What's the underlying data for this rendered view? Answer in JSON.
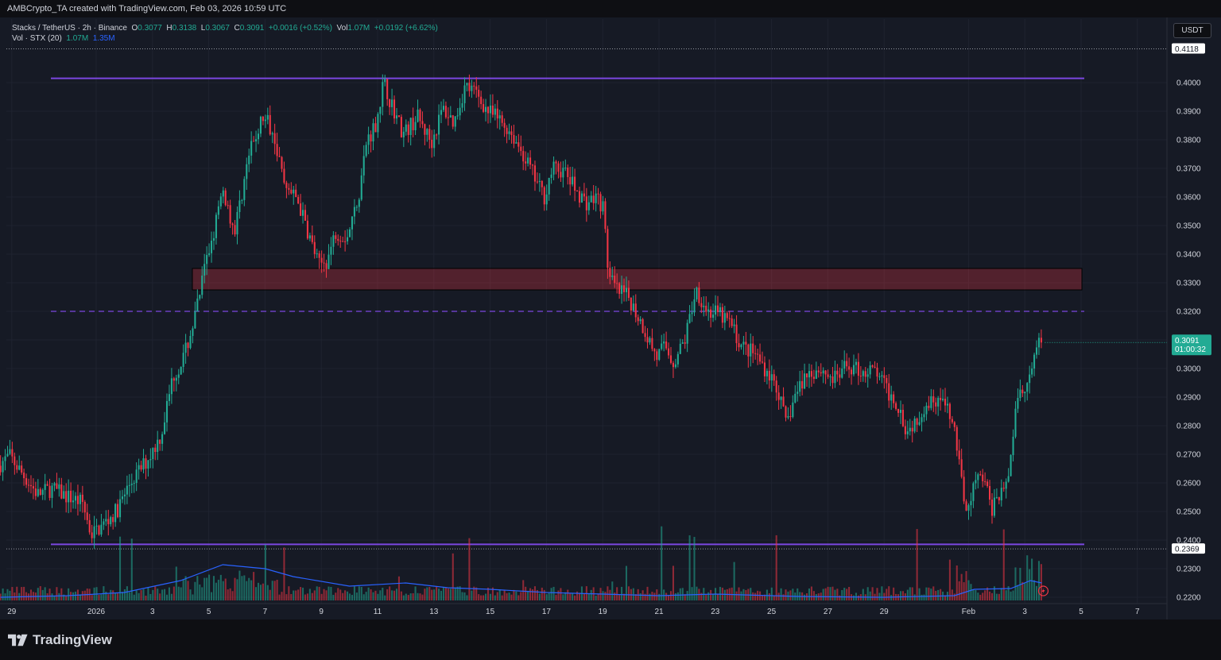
{
  "header": {
    "attribution": "AMBCrypto_TA created with TradingView.com, Feb 03, 2026 10:59 UTC"
  },
  "legend": {
    "symbol": "Stacks / TetherUS · 2h · Binance",
    "o_label": "O",
    "o_value": "0.3077",
    "h_label": "H",
    "h_value": "0.3138",
    "l_label": "L",
    "l_value": "0.3067",
    "c_label": "C",
    "c_value": "0.3091",
    "change": "+0.0016 (+0.52%)",
    "vol_label": "Vol",
    "vol_value": "1.07M",
    "vol_change": "+0.0192 (+6.62%)",
    "vol_indicator": "Vol · STX (20)",
    "vol_ind_value1": "1.07M",
    "vol_ind_value2": "1.35M"
  },
  "currency": "USDT",
  "footer": {
    "brand": "TradingView"
  },
  "colors": {
    "up": "#22ab94",
    "down": "#f23645",
    "level": "#7b47e0",
    "zone": "#f23645",
    "vol_ma": "#2962ff"
  },
  "chart_data": {
    "type": "candlestick",
    "symbol": "STX/USDT",
    "interval": "2h",
    "y_axis": {
      "min": 0.22,
      "max": 0.41,
      "ticks": [
        "0.4000",
        "0.3900",
        "0.3800",
        "0.3700",
        "0.3600",
        "0.3500",
        "0.3400",
        "0.3300",
        "0.3200",
        "0.3100",
        "0.3000",
        "0.2900",
        "0.2800",
        "0.2700",
        "0.2600",
        "0.2500",
        "0.2400",
        "0.2300",
        "0.2200"
      ]
    },
    "x_axis": {
      "ticks": [
        {
          "label": "29",
          "day": -3
        },
        {
          "label": "2026",
          "day": 0
        },
        {
          "label": "3",
          "day": 2
        },
        {
          "label": "5",
          "day": 4
        },
        {
          "label": "7",
          "day": 6
        },
        {
          "label": "9",
          "day": 8
        },
        {
          "label": "11",
          "day": 10
        },
        {
          "label": "13",
          "day": 12
        },
        {
          "label": "15",
          "day": 14
        },
        {
          "label": "17",
          "day": 16
        },
        {
          "label": "19",
          "day": 18
        },
        {
          "label": "21",
          "day": 20
        },
        {
          "label": "23",
          "day": 22
        },
        {
          "label": "25",
          "day": 24
        },
        {
          "label": "27",
          "day": 26
        },
        {
          "label": "29",
          "day": 28
        },
        {
          "label": "Feb",
          "day": 31
        },
        {
          "label": "3",
          "day": 33
        },
        {
          "label": "5",
          "day": 35
        },
        {
          "label": "7",
          "day": 37
        }
      ]
    },
    "price_labels": {
      "high_marker": "0.4118",
      "current_price": "0.3091",
      "countdown": "01:00:32",
      "low_marker": "0.2369"
    },
    "levels": {
      "resistance": 0.4015,
      "mid_dashed": 0.32,
      "support": 0.2385,
      "zone_low": 0.3275,
      "zone_high": 0.335
    },
    "price_path": [
      [
        -3.4,
        0.266
      ],
      [
        -3.0,
        0.2695
      ],
      [
        -2.6,
        0.264
      ],
      [
        -2.0,
        0.256
      ],
      [
        -1.5,
        0.258
      ],
      [
        -1.0,
        0.2555
      ],
      [
        -0.4,
        0.253
      ],
      [
        -0.1,
        0.242
      ],
      [
        0.3,
        0.245
      ],
      [
        0.8,
        0.25
      ],
      [
        1.3,
        0.26
      ],
      [
        1.9,
        0.268
      ],
      [
        2.4,
        0.277
      ],
      [
        2.8,
        0.297
      ],
      [
        3.2,
        0.304
      ],
      [
        3.6,
        0.318
      ],
      [
        3.9,
        0.333
      ],
      [
        4.3,
        0.35
      ],
      [
        4.6,
        0.362
      ],
      [
        5.0,
        0.348
      ],
      [
        5.5,
        0.374
      ],
      [
        6.0,
        0.388
      ],
      [
        6.4,
        0.383
      ],
      [
        6.8,
        0.362
      ],
      [
        7.2,
        0.36
      ],
      [
        7.6,
        0.348
      ],
      [
        8.0,
        0.336
      ],
      [
        8.3,
        0.338
      ],
      [
        8.6,
        0.348
      ],
      [
        9.0,
        0.346
      ],
      [
        9.4,
        0.36
      ],
      [
        9.7,
        0.38
      ],
      [
        10.0,
        0.385
      ],
      [
        10.3,
        0.4
      ],
      [
        10.6,
        0.392
      ],
      [
        11.0,
        0.382
      ],
      [
        11.5,
        0.388
      ],
      [
        12.0,
        0.379
      ],
      [
        12.4,
        0.391
      ],
      [
        12.8,
        0.386
      ],
      [
        13.2,
        0.399
      ],
      [
        13.6,
        0.396
      ],
      [
        14.0,
        0.39
      ],
      [
        14.4,
        0.387
      ],
      [
        14.8,
        0.383
      ],
      [
        15.2,
        0.376
      ],
      [
        15.6,
        0.368
      ],
      [
        16.0,
        0.36
      ],
      [
        16.3,
        0.37
      ],
      [
        16.7,
        0.369
      ],
      [
        17.1,
        0.363
      ],
      [
        17.5,
        0.358
      ],
      [
        17.9,
        0.36
      ],
      [
        18.1,
        0.356
      ],
      [
        18.3,
        0.332
      ],
      [
        18.6,
        0.327
      ],
      [
        19.0,
        0.325
      ],
      [
        19.5,
        0.315
      ],
      [
        20.0,
        0.304
      ],
      [
        20.3,
        0.308
      ],
      [
        20.6,
        0.302
      ],
      [
        21.0,
        0.31
      ],
      [
        21.4,
        0.328
      ],
      [
        21.8,
        0.32
      ],
      [
        22.2,
        0.319
      ],
      [
        22.6,
        0.316
      ],
      [
        23.0,
        0.308
      ],
      [
        23.5,
        0.305
      ],
      [
        24.0,
        0.298
      ],
      [
        24.3,
        0.293
      ],
      [
        24.6,
        0.28
      ],
      [
        24.9,
        0.29
      ],
      [
        25.3,
        0.298
      ],
      [
        25.8,
        0.3
      ],
      [
        26.3,
        0.296
      ],
      [
        26.8,
        0.301
      ],
      [
        27.3,
        0.299
      ],
      [
        27.8,
        0.299
      ],
      [
        28.2,
        0.292
      ],
      [
        28.6,
        0.287
      ],
      [
        28.9,
        0.278
      ],
      [
        29.2,
        0.282
      ],
      [
        29.6,
        0.288
      ],
      [
        30.0,
        0.29
      ],
      [
        30.3,
        0.286
      ],
      [
        30.6,
        0.278
      ],
      [
        30.8,
        0.262
      ],
      [
        31.0,
        0.252
      ],
      [
        31.3,
        0.26
      ],
      [
        31.6,
        0.262
      ],
      [
        31.9,
        0.251
      ],
      [
        32.2,
        0.257
      ],
      [
        32.5,
        0.262
      ],
      [
        32.8,
        0.29
      ],
      [
        33.1,
        0.292
      ],
      [
        33.4,
        0.302
      ],
      [
        33.6,
        0.3091
      ]
    ],
    "volume_ma_path": [
      [
        -3.4,
        0.004
      ],
      [
        -1.0,
        0.006
      ],
      [
        1.0,
        0.01
      ],
      [
        3.0,
        0.025
      ],
      [
        4.5,
        0.045
      ],
      [
        6.0,
        0.04
      ],
      [
        7.0,
        0.03
      ],
      [
        9.0,
        0.018
      ],
      [
        11.0,
        0.022
      ],
      [
        12.5,
        0.016
      ],
      [
        14.0,
        0.014
      ],
      [
        16.0,
        0.01
      ],
      [
        18.0,
        0.008
      ],
      [
        20.0,
        0.006
      ],
      [
        22.0,
        0.008
      ],
      [
        25.0,
        0.005
      ],
      [
        28.0,
        0.004
      ],
      [
        30.5,
        0.006
      ],
      [
        31.2,
        0.014
      ],
      [
        32.5,
        0.015
      ],
      [
        33.2,
        0.025
      ],
      [
        33.6,
        0.022
      ]
    ]
  }
}
